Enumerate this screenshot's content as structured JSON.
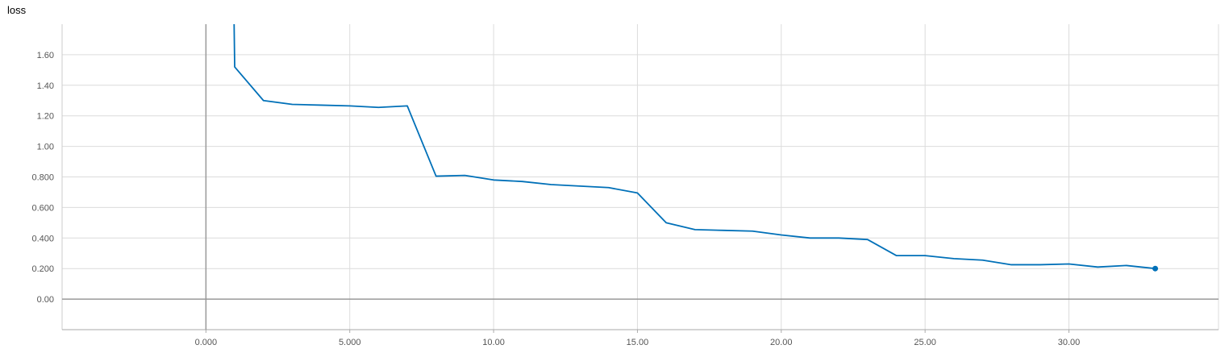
{
  "chart_data": {
    "type": "line",
    "title": "loss",
    "xlabel": "",
    "ylabel": "",
    "xlim": [
      -5,
      35.2
    ],
    "ylim": [
      -0.2,
      1.8
    ],
    "xticks": [
      {
        "value": 0,
        "label": "0.000"
      },
      {
        "value": 5,
        "label": "5.000"
      },
      {
        "value": 10,
        "label": "10.00"
      },
      {
        "value": 15,
        "label": "15.00"
      },
      {
        "value": 20,
        "label": "20.00"
      },
      {
        "value": 25,
        "label": "25.00"
      },
      {
        "value": 30,
        "label": "30.00"
      }
    ],
    "yticks": [
      {
        "value": 0,
        "label": "0.00"
      },
      {
        "value": 0.2,
        "label": "0.200"
      },
      {
        "value": 0.4,
        "label": "0.400"
      },
      {
        "value": 0.6,
        "label": "0.600"
      },
      {
        "value": 0.8,
        "label": "0.800"
      },
      {
        "value": 1.0,
        "label": "1.00"
      },
      {
        "value": 1.2,
        "label": "1.20"
      },
      {
        "value": 1.4,
        "label": "1.40"
      },
      {
        "value": 1.6,
        "label": "1.60"
      }
    ],
    "grid": true,
    "series": [
      {
        "color": "#0070b8",
        "points": [
          [
            0.95,
            2.2
          ],
          [
            1,
            1.52
          ],
          [
            2,
            1.3
          ],
          [
            3,
            1.275
          ],
          [
            4,
            1.27
          ],
          [
            5,
            1.265
          ],
          [
            6,
            1.255
          ],
          [
            7,
            1.265
          ],
          [
            8,
            0.805
          ],
          [
            9,
            0.81
          ],
          [
            10,
            0.78
          ],
          [
            11,
            0.77
          ],
          [
            12,
            0.75
          ],
          [
            13,
            0.74
          ],
          [
            14,
            0.73
          ],
          [
            15,
            0.695
          ],
          [
            16,
            0.5
          ],
          [
            17,
            0.455
          ],
          [
            18,
            0.45
          ],
          [
            19,
            0.445
          ],
          [
            20,
            0.42
          ],
          [
            21,
            0.4
          ],
          [
            22,
            0.4
          ],
          [
            23,
            0.39
          ],
          [
            24,
            0.285
          ],
          [
            25,
            0.285
          ],
          [
            26,
            0.265
          ],
          [
            27,
            0.255
          ],
          [
            28,
            0.225
          ],
          [
            29,
            0.225
          ],
          [
            30,
            0.23
          ],
          [
            31,
            0.21
          ],
          [
            32,
            0.22
          ],
          [
            33,
            0.2
          ]
        ]
      }
    ]
  }
}
